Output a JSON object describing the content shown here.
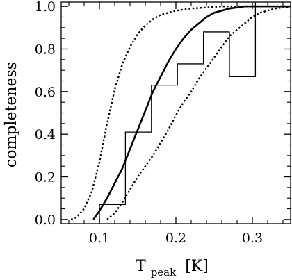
{
  "chart_data": {
    "type": "line",
    "title": "",
    "xlabel_main": "T",
    "xlabel_sub": "peak",
    "xlabel_unit": "[K]",
    "ylabel": "completeness",
    "xlim": [
      0.05,
      0.35
    ],
    "ylim": [
      -0.02,
      1.02
    ],
    "x_ticks": [
      0.1,
      0.2,
      0.3
    ],
    "x_tick_labels": [
      "0.1",
      "0.2",
      "0.3"
    ],
    "y_ticks": [
      0.0,
      0.2,
      0.4,
      0.6,
      0.8,
      1.0
    ],
    "y_tick_labels": [
      "0.0",
      "0.2",
      "0.4",
      "0.6",
      "0.8",
      "1.0"
    ],
    "grid": false,
    "series": [
      {
        "style": "histogram-step",
        "bin_edges": [
          0.1,
          0.134,
          0.168,
          0.202,
          0.236,
          0.27,
          0.304
        ],
        "values": [
          0.07,
          0.41,
          0.63,
          0.73,
          0.88,
          0.67
        ]
      },
      {
        "style": "solid-thick",
        "x": [
          0.092,
          0.1,
          0.11,
          0.12,
          0.13,
          0.14,
          0.15,
          0.16,
          0.17,
          0.18,
          0.19,
          0.2,
          0.21,
          0.22,
          0.23,
          0.24,
          0.25,
          0.26,
          0.27,
          0.28,
          0.29,
          0.3,
          0.31,
          0.33,
          0.35
        ],
        "y": [
          0.0,
          0.04,
          0.1,
          0.17,
          0.24,
          0.33,
          0.42,
          0.51,
          0.6,
          0.67,
          0.74,
          0.8,
          0.85,
          0.89,
          0.92,
          0.95,
          0.97,
          0.98,
          0.99,
          0.995,
          1.0,
          1.0,
          1.0,
          1.0,
          1.0
        ]
      },
      {
        "style": "dotted",
        "x": [
          0.063,
          0.07,
          0.08,
          0.09,
          0.1,
          0.11,
          0.12,
          0.13,
          0.14,
          0.15,
          0.16,
          0.17,
          0.18,
          0.19,
          0.2,
          0.22,
          0.24,
          0.26,
          0.28,
          0.3,
          0.33,
          0.35
        ],
        "y": [
          0.0,
          0.01,
          0.05,
          0.13,
          0.27,
          0.45,
          0.61,
          0.73,
          0.81,
          0.87,
          0.91,
          0.94,
          0.96,
          0.97,
          0.98,
          0.99,
          0.995,
          1.0,
          1.0,
          1.0,
          1.0,
          1.0
        ]
      },
      {
        "style": "dotted",
        "x": [
          0.11,
          0.12,
          0.13,
          0.14,
          0.15,
          0.16,
          0.17,
          0.18,
          0.19,
          0.2,
          0.21,
          0.22,
          0.23,
          0.24,
          0.25,
          0.26,
          0.27,
          0.28,
          0.29,
          0.3,
          0.31,
          0.32,
          0.33,
          0.34,
          0.35
        ],
        "y": [
          0.0,
          0.03,
          0.08,
          0.14,
          0.2,
          0.25,
          0.3,
          0.36,
          0.42,
          0.49,
          0.55,
          0.6,
          0.66,
          0.71,
          0.76,
          0.81,
          0.86,
          0.89,
          0.92,
          0.95,
          0.97,
          0.98,
          0.99,
          0.995,
          1.0
        ]
      }
    ]
  }
}
